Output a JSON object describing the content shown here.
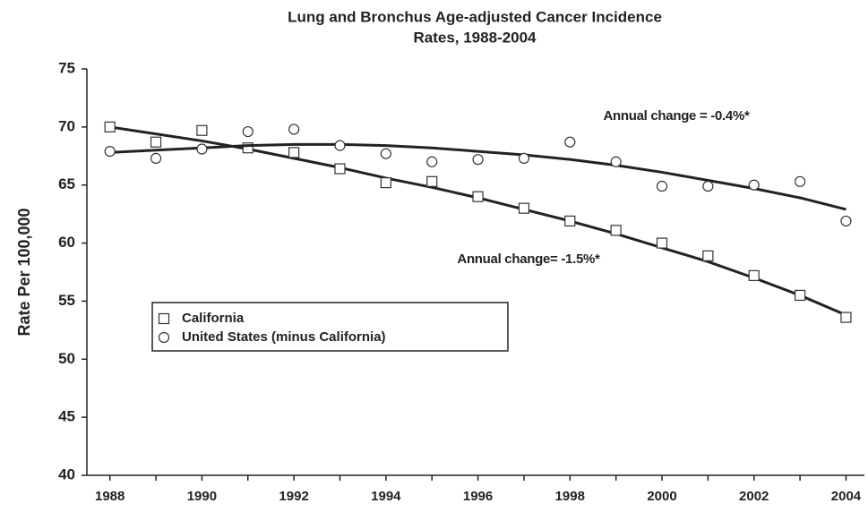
{
  "chart_data": {
    "type": "scatter",
    "title": [
      "Lung and Bronchus Age-adjusted Cancer Incidence",
      "Rates, 1988-2004"
    ],
    "y_label": "Rate Per 100,000",
    "x": [
      1988,
      1989,
      1990,
      1991,
      1992,
      1993,
      1994,
      1995,
      1996,
      1997,
      1998,
      1999,
      2000,
      2001,
      2002,
      2003,
      2004
    ],
    "series": [
      {
        "name": "California",
        "marker": "square",
        "color": "#222222",
        "values": [
          70.0,
          68.7,
          69.7,
          68.2,
          67.8,
          66.4,
          65.2,
          65.3,
          64.0,
          63.0,
          61.9,
          61.1,
          60.0,
          58.9,
          57.2,
          55.5,
          53.6
        ],
        "trend": [
          70.0,
          69.4,
          68.8,
          68.1,
          67.3,
          66.5,
          65.6,
          64.8,
          63.9,
          62.9,
          61.9,
          60.8,
          59.6,
          58.4,
          57.0,
          55.5,
          53.8
        ],
        "annotation": "Annual change=  -1.5%*"
      },
      {
        "name": "United States (minus California)",
        "marker": "circle",
        "color": "#222222",
        "values": [
          67.9,
          67.3,
          68.1,
          69.6,
          69.8,
          68.4,
          67.7,
          67.0,
          67.2,
          67.3,
          68.7,
          67.0,
          64.9,
          64.9,
          65.0,
          65.3,
          61.9
        ],
        "trend": [
          67.8,
          68.0,
          68.2,
          68.4,
          68.5,
          68.5,
          68.4,
          68.2,
          67.9,
          67.6,
          67.2,
          66.7,
          66.1,
          65.4,
          64.7,
          63.9,
          62.9
        ],
        "annotation": "Annual change =  -0.4%*"
      }
    ],
    "xlim": [
      1987.5,
      2004.4
    ],
    "xticks": [
      1988,
      1990,
      1992,
      1994,
      1996,
      1998,
      2000,
      2002,
      2004
    ],
    "xminorticks": [
      1989,
      1991,
      1993,
      1995,
      1997,
      1999,
      2001,
      2003
    ],
    "ylim": [
      40,
      75
    ],
    "yticks": [
      40,
      45,
      50,
      55,
      60,
      65,
      70,
      75
    ],
    "grid": false,
    "legend": "lower left"
  }
}
